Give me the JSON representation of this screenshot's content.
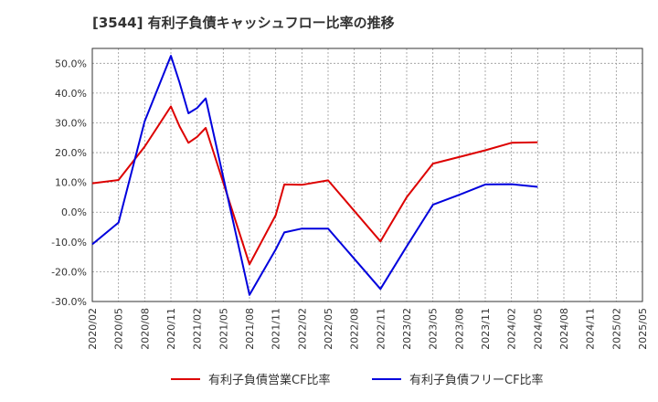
{
  "chart_data": {
    "type": "line",
    "title": "[3544]  有利子負債キャッシュフロー比率の推移",
    "x": [
      "2020/02",
      "2020/05",
      "2020/08",
      "2020/11",
      "2021/02",
      "2021/05",
      "2021/08",
      "2021/11",
      "2022/02",
      "2022/05",
      "2022/08",
      "2022/11",
      "2023/02",
      "2023/05",
      "2023/08",
      "2023/11",
      "2024/02",
      "2024/05",
      "2024/08",
      "2024/11",
      "2025/02",
      "2025/05"
    ],
    "ylim": [
      -30,
      55
    ],
    "yticks": [
      -30,
      -20,
      -10,
      0,
      10,
      20,
      30,
      40,
      50
    ],
    "ytick_labels": [
      "-30.0%",
      "-20.0%",
      "-10.0%",
      "0.0%",
      "10.0%",
      "20.0%",
      "30.0%",
      "40.0%",
      "50.0%"
    ],
    "grid": true,
    "legend_position": "bottom",
    "series": [
      {
        "name": "有利子負債営業CF比率",
        "color": "#dd0000",
        "points": [
          {
            "t": 0,
            "v": 9.7
          },
          {
            "t": 1,
            "v": 10.8
          },
          {
            "t": 2,
            "v": 22.0
          },
          {
            "t": 3,
            "v": 35.5
          },
          {
            "t": 3.33,
            "v": 28.8
          },
          {
            "t": 3.67,
            "v": 23.3
          },
          {
            "t": 4,
            "v": 25.3
          },
          {
            "t": 4.33,
            "v": 28.3
          },
          {
            "t": 6,
            "v": -17.5
          },
          {
            "t": 7,
            "v": -1.0
          },
          {
            "t": 7.33,
            "v": 9.3
          },
          {
            "t": 8,
            "v": 9.2
          },
          {
            "t": 9,
            "v": 10.7
          },
          {
            "t": 11,
            "v": -9.8
          },
          {
            "t": 12,
            "v": 5.0
          },
          {
            "t": 13,
            "v": 16.3
          },
          {
            "t": 14,
            "v": 18.5
          },
          {
            "t": 15,
            "v": 20.8
          },
          {
            "t": 16,
            "v": 23.3
          },
          {
            "t": 17,
            "v": 23.5
          }
        ]
      },
      {
        "name": "有利子負債フリーCF比率",
        "color": "#0000dd",
        "points": [
          {
            "t": 0,
            "v": -10.8
          },
          {
            "t": 1,
            "v": -3.5
          },
          {
            "t": 2,
            "v": 30.5
          },
          {
            "t": 3,
            "v": 52.5
          },
          {
            "t": 3.33,
            "v": 43.5
          },
          {
            "t": 3.67,
            "v": 33.2
          },
          {
            "t": 4,
            "v": 35.0
          },
          {
            "t": 4.33,
            "v": 38.2
          },
          {
            "t": 6,
            "v": -27.8
          },
          {
            "t": 7,
            "v": -12.5
          },
          {
            "t": 7.33,
            "v": -6.8
          },
          {
            "t": 8,
            "v": -5.5
          },
          {
            "t": 9,
            "v": -5.5
          },
          {
            "t": 11,
            "v": -25.8
          },
          {
            "t": 12,
            "v": -11.5
          },
          {
            "t": 13,
            "v": 2.5
          },
          {
            "t": 14,
            "v": 5.8
          },
          {
            "t": 15,
            "v": 9.3
          },
          {
            "t": 16,
            "v": 9.4
          },
          {
            "t": 17,
            "v": 8.5
          }
        ]
      }
    ]
  }
}
